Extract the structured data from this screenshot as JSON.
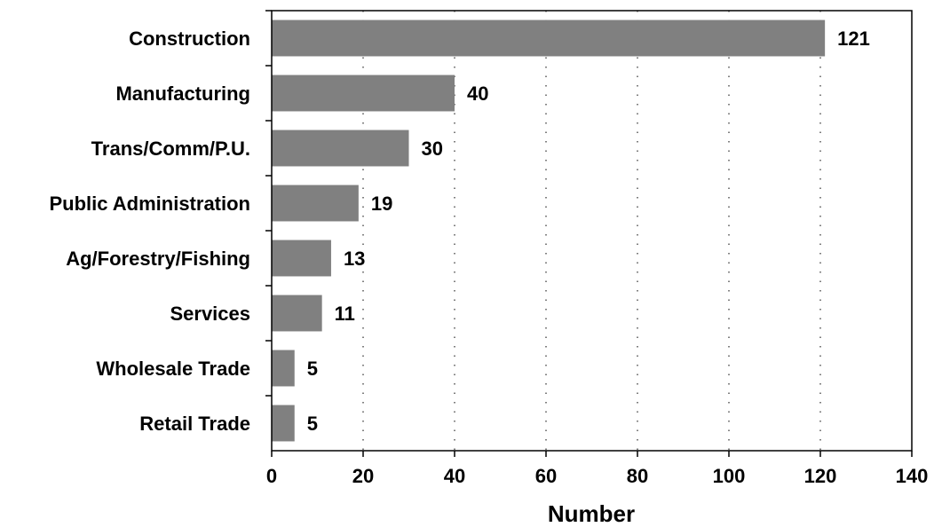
{
  "chart_data": {
    "type": "bar",
    "orientation": "horizontal",
    "categories": [
      "Construction",
      "Manufacturing",
      "Trans/Comm/P.U.",
      "Public Administration",
      "Ag/Forestry/Fishing",
      "Services",
      "Wholesale Trade",
      "Retail Trade"
    ],
    "values": [
      121,
      40,
      30,
      19,
      13,
      11,
      5,
      5
    ],
    "data_labels": [
      "121",
      "40",
      "30",
      "19",
      "13",
      "11",
      "5",
      "5"
    ],
    "xlabel": "Number",
    "ylabel": "",
    "xlim": [
      0,
      140
    ],
    "xticks": [
      0,
      20,
      40,
      60,
      80,
      100,
      120,
      140
    ],
    "grid": "vertical dotted",
    "legend": "none",
    "colors": {
      "bar": "#808080",
      "grid": "#000000",
      "axis": "#000000"
    }
  }
}
